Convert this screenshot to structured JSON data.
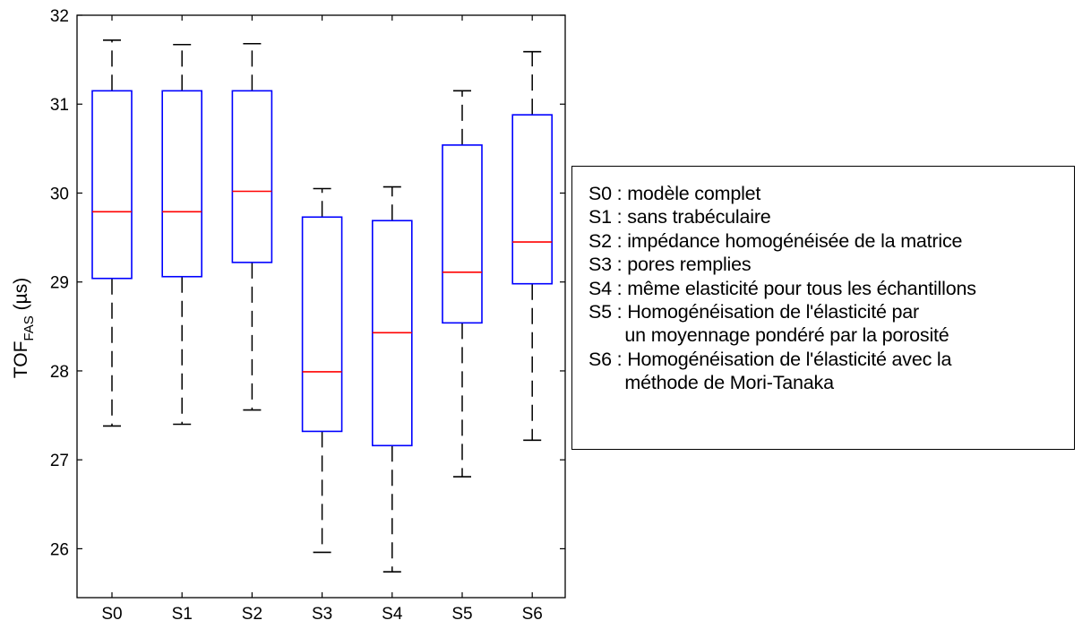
{
  "chart_data": {
    "type": "box",
    "categories": [
      "S0",
      "S1",
      "S2",
      "S3",
      "S4",
      "S5",
      "S6"
    ],
    "ylabel": "TOF",
    "ylabel_subscript": "FAS",
    "ylabel_unit": " (µs)",
    "ylim": [
      25.45,
      32
    ],
    "yticks": [
      26,
      27,
      28,
      29,
      30,
      31,
      32
    ],
    "series": [
      {
        "min": 27.38,
        "q1": 29.04,
        "median": 29.79,
        "q3": 31.15,
        "max": 31.72
      },
      {
        "min": 27.4,
        "q1": 29.06,
        "median": 29.79,
        "q3": 31.15,
        "max": 31.67
      },
      {
        "min": 27.56,
        "q1": 29.22,
        "median": 30.02,
        "q3": 31.15,
        "max": 31.68
      },
      {
        "min": 25.96,
        "q1": 27.32,
        "median": 27.99,
        "q3": 29.73,
        "max": 30.05
      },
      {
        "min": 25.74,
        "q1": 27.16,
        "median": 28.43,
        "q3": 29.69,
        "max": 30.07
      },
      {
        "min": 26.81,
        "q1": 28.54,
        "median": 29.11,
        "q3": 30.54,
        "max": 31.15
      },
      {
        "min": 27.22,
        "q1": 28.98,
        "median": 29.45,
        "q3": 30.88,
        "max": 31.59
      }
    ],
    "colors": {
      "box": "#0000ff",
      "median": "#ff0000",
      "whisker": "#000000"
    },
    "grid": false,
    "legend_position": "right",
    "legend": [
      "S0 : modèle complet",
      "S1 : sans trabéculaire",
      "S2 : impédance homogénéisée de la matrice",
      "S3 : pores remplies",
      "S4 : même elasticité pour tous les échantillons",
      "S5 : Homogénéisation de l'élasticité par",
      "       un moyennage pondéré par la porosité",
      "S6 : Homogénéisation de l'élasticité avec la",
      "       méthode de Mori-Tanaka"
    ]
  }
}
